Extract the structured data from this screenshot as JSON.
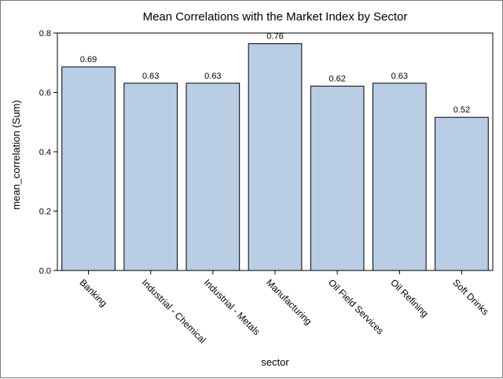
{
  "chart_data": {
    "type": "bar",
    "title": "Mean Correlations with the Market Index by Sector",
    "xlabel": "sector",
    "ylabel": "mean_correlation (Sum)",
    "categories": [
      "Banking",
      "Industrial - Chemical",
      "Industrial - Metals",
      "Manufacturing",
      "Oil Field Services",
      "Oil Refining",
      "Soft Drinks"
    ],
    "values": [
      0.686,
      0.631,
      0.631,
      0.764,
      0.621,
      0.631,
      0.516
    ],
    "data_labels": [
      "0.69",
      "0.63",
      "0.63",
      "0.76",
      "0.62",
      "0.63",
      "0.52"
    ],
    "ylim": [
      0,
      0.8
    ],
    "yticks": [
      0.0,
      0.2,
      0.4,
      0.6,
      0.8
    ],
    "ytick_labels": [
      "0.0",
      "0.2",
      "0.4",
      "0.6",
      "0.8"
    ],
    "bar_color": "#b9cde5",
    "bar_edge_color": "#000000",
    "grid": false,
    "legend": "none"
  }
}
